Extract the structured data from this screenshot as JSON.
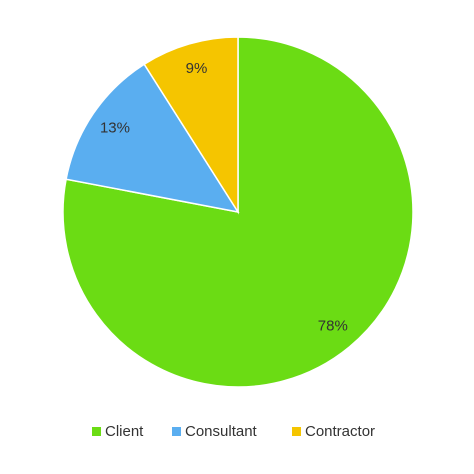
{
  "chart_data": {
    "type": "pie",
    "categories": [
      "Client",
      "Consultant",
      "Contractor"
    ],
    "values": [
      78,
      13,
      9
    ],
    "value_labels": [
      "78%",
      "13%",
      "9%"
    ],
    "colors": [
      "#6bdc14",
      "#5aaef0",
      "#f5c500"
    ],
    "legend": "bottom"
  }
}
